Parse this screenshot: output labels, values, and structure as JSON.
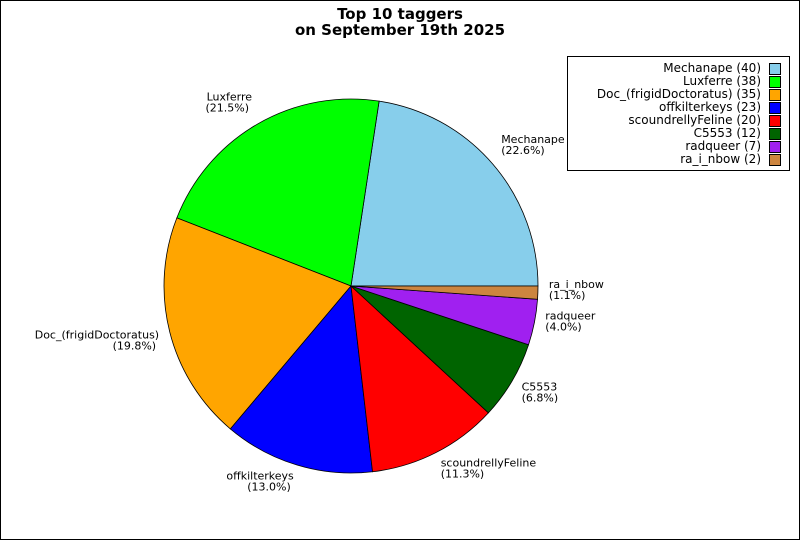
{
  "title": {
    "line1": "Top 10 taggers",
    "line2": "on September 19th 2025"
  },
  "chart_data": {
    "type": "pie",
    "title": "Top 10 taggers on September 19th 2025",
    "slices": [
      {
        "name": "Mechanape",
        "value": 40,
        "percent": "22.6%",
        "color": "#87CEEB",
        "legend": "Mechanape (40)"
      },
      {
        "name": "Luxferre",
        "value": 38,
        "percent": "21.5%",
        "color": "#00FF00",
        "legend": "Luxferre (38)"
      },
      {
        "name": "Doc_(frigidDoctoratus)",
        "value": 35,
        "percent": "19.8%",
        "color": "#FFA500",
        "legend": "Doc_(frigidDoctoratus) (35)"
      },
      {
        "name": "offkilterkeys",
        "value": 23,
        "percent": "13.0%",
        "color": "#0000FF",
        "legend": "offkilterkeys (23)"
      },
      {
        "name": "scoundrellyFeline",
        "value": 20,
        "percent": "11.3%",
        "color": "#FF0000",
        "legend": "scoundrellyFeline (20)"
      },
      {
        "name": "C5553",
        "value": 12,
        "percent": "6.8%",
        "color": "#006400",
        "legend": "C5553 (12)"
      },
      {
        "name": "radqueer",
        "value": 7,
        "percent": "4.0%",
        "color": "#A020F0",
        "legend": "radqueer (7)"
      },
      {
        "name": "ra_i_nbow",
        "value": 2,
        "percent": "1.1%",
        "color": "#CD853F",
        "legend": "ra_i_nbow (2)"
      }
    ],
    "legend_position": "top-right",
    "start_angle": "3 o'clock",
    "direction": "counterclockwise"
  }
}
